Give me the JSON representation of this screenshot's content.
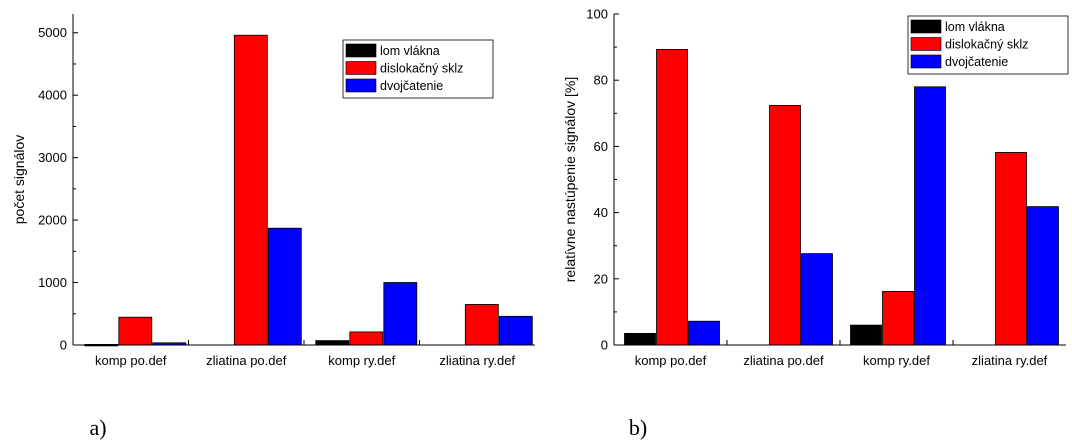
{
  "chart_data": [
    {
      "type": "bar",
      "panel_label": "a)",
      "ylabel": "počet signálov",
      "xlabel": "",
      "ylim": [
        0,
        5300
      ],
      "yticks": [
        0,
        1000,
        2000,
        3000,
        4000,
        5000
      ],
      "categories": [
        "komp po.def",
        "zliatina po.def",
        "komp ry.def",
        "zliatina ry.def"
      ],
      "legend_position": "top-right",
      "series": [
        {
          "name": "lom vlákna",
          "color": "#000000",
          "values": [
            10,
            0,
            70,
            0
          ]
        },
        {
          "name": "dislokačný sklz",
          "color": "#ff0000",
          "values": [
            445,
            4960,
            210,
            650
          ]
        },
        {
          "name": "dvojčatenie",
          "color": "#0000ff",
          "values": [
            35,
            1870,
            1000,
            460
          ]
        }
      ]
    },
    {
      "type": "bar",
      "panel_label": "b)",
      "ylabel": "relatívne nastúpenie signálov [%]",
      "xlabel": "",
      "ylim": [
        0,
        100
      ],
      "yticks": [
        0,
        20,
        40,
        60,
        80,
        100
      ],
      "categories": [
        "komp po.def",
        "zliatina po.def",
        "komp ry.def",
        "zliatina ry.def"
      ],
      "legend_position": "top-right",
      "series": [
        {
          "name": "lom vlákna",
          "color": "#000000",
          "values": [
            3.5,
            0,
            6,
            0
          ]
        },
        {
          "name": "dislokačný sklz",
          "color": "#ff0000",
          "values": [
            89.3,
            72.4,
            16.2,
            58.2
          ]
        },
        {
          "name": "dvojčatenie",
          "color": "#0000ff",
          "values": [
            7.2,
            27.6,
            78.0,
            41.8
          ]
        }
      ]
    }
  ]
}
